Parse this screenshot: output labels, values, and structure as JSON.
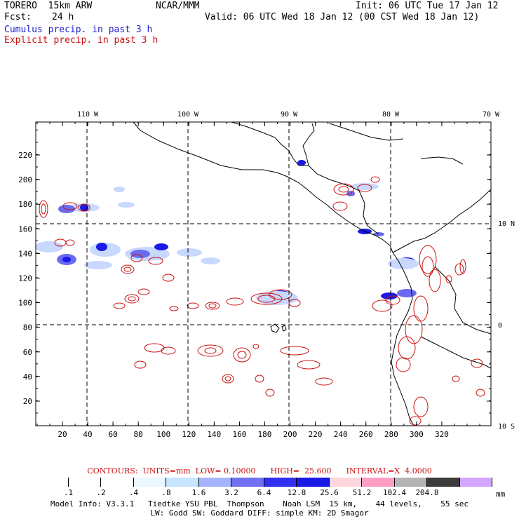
{
  "header": {
    "model": "TORERO  15km ARW",
    "org": "NCAR/MMM",
    "init": "Init: 06 UTC Tue 17 Jan 12",
    "fcst_label": "Fcst:",
    "fcst_value": "24 h",
    "valid": "Valid: 06 UTC Wed 18 Jan 12 (00 CST Wed 18 Jan 12)",
    "field1": "Cumulus precip. in past 3 h",
    "field2": "Explicit precip. in past 3 h"
  },
  "map": {
    "lon_labels": [
      "110 W",
      "100 W",
      "90 W",
      "80 W",
      "70 W"
    ],
    "lat_labels": [
      "10 N",
      "0",
      "10 S"
    ],
    "x_ticks": [
      "20",
      "40",
      "60",
      "80",
      "100",
      "120",
      "140",
      "160",
      "180",
      "200",
      "220",
      "240",
      "260",
      "280",
      "300",
      "320"
    ],
    "y_ticks": [
      "20",
      "40",
      "60",
      "80",
      "100",
      "120",
      "140",
      "160",
      "180",
      "200",
      "220"
    ],
    "colors": {
      "coast": "#000000",
      "grid": "#000000",
      "contour": "#cc1111",
      "shade_light": "#c8d8ff",
      "shade_mid": "#6a6af0",
      "shade_dark": "#1a1ae6"
    }
  },
  "contours_line": "CONTOURS:  UNITS=mm  LOW= 0.10000      HIGH=  25.600      INTERVAL=X  4.0000",
  "colorbar": {
    "unit": "mm",
    "labels": [
      ".1",
      ".2",
      ".4",
      ".8",
      "1.6",
      "3.2",
      "6.4",
      "12.8",
      "25.6",
      "51.2",
      "102.4",
      "204.8"
    ],
    "colors": [
      "#ffffff",
      "#ffffff",
      "#ffffff",
      "#eaf8ff",
      "#c8e6ff",
      "#a6b4ff",
      "#7070f0",
      "#3030ee",
      "#1a1ae6",
      "#ffd6dc",
      "#ff9ec4",
      "#b4b4b4",
      "#3c3c3c",
      "#d4a6ff"
    ]
  },
  "footer": {
    "line1": "Model Info: V3.3.1   Tiedtke YSU PBL  Thompson    Noah LSM  15 km,    44 levels,    55 sec",
    "line2": "LW: Godd SW: Goddard DIFF: simple KM: 2D Smagor"
  }
}
